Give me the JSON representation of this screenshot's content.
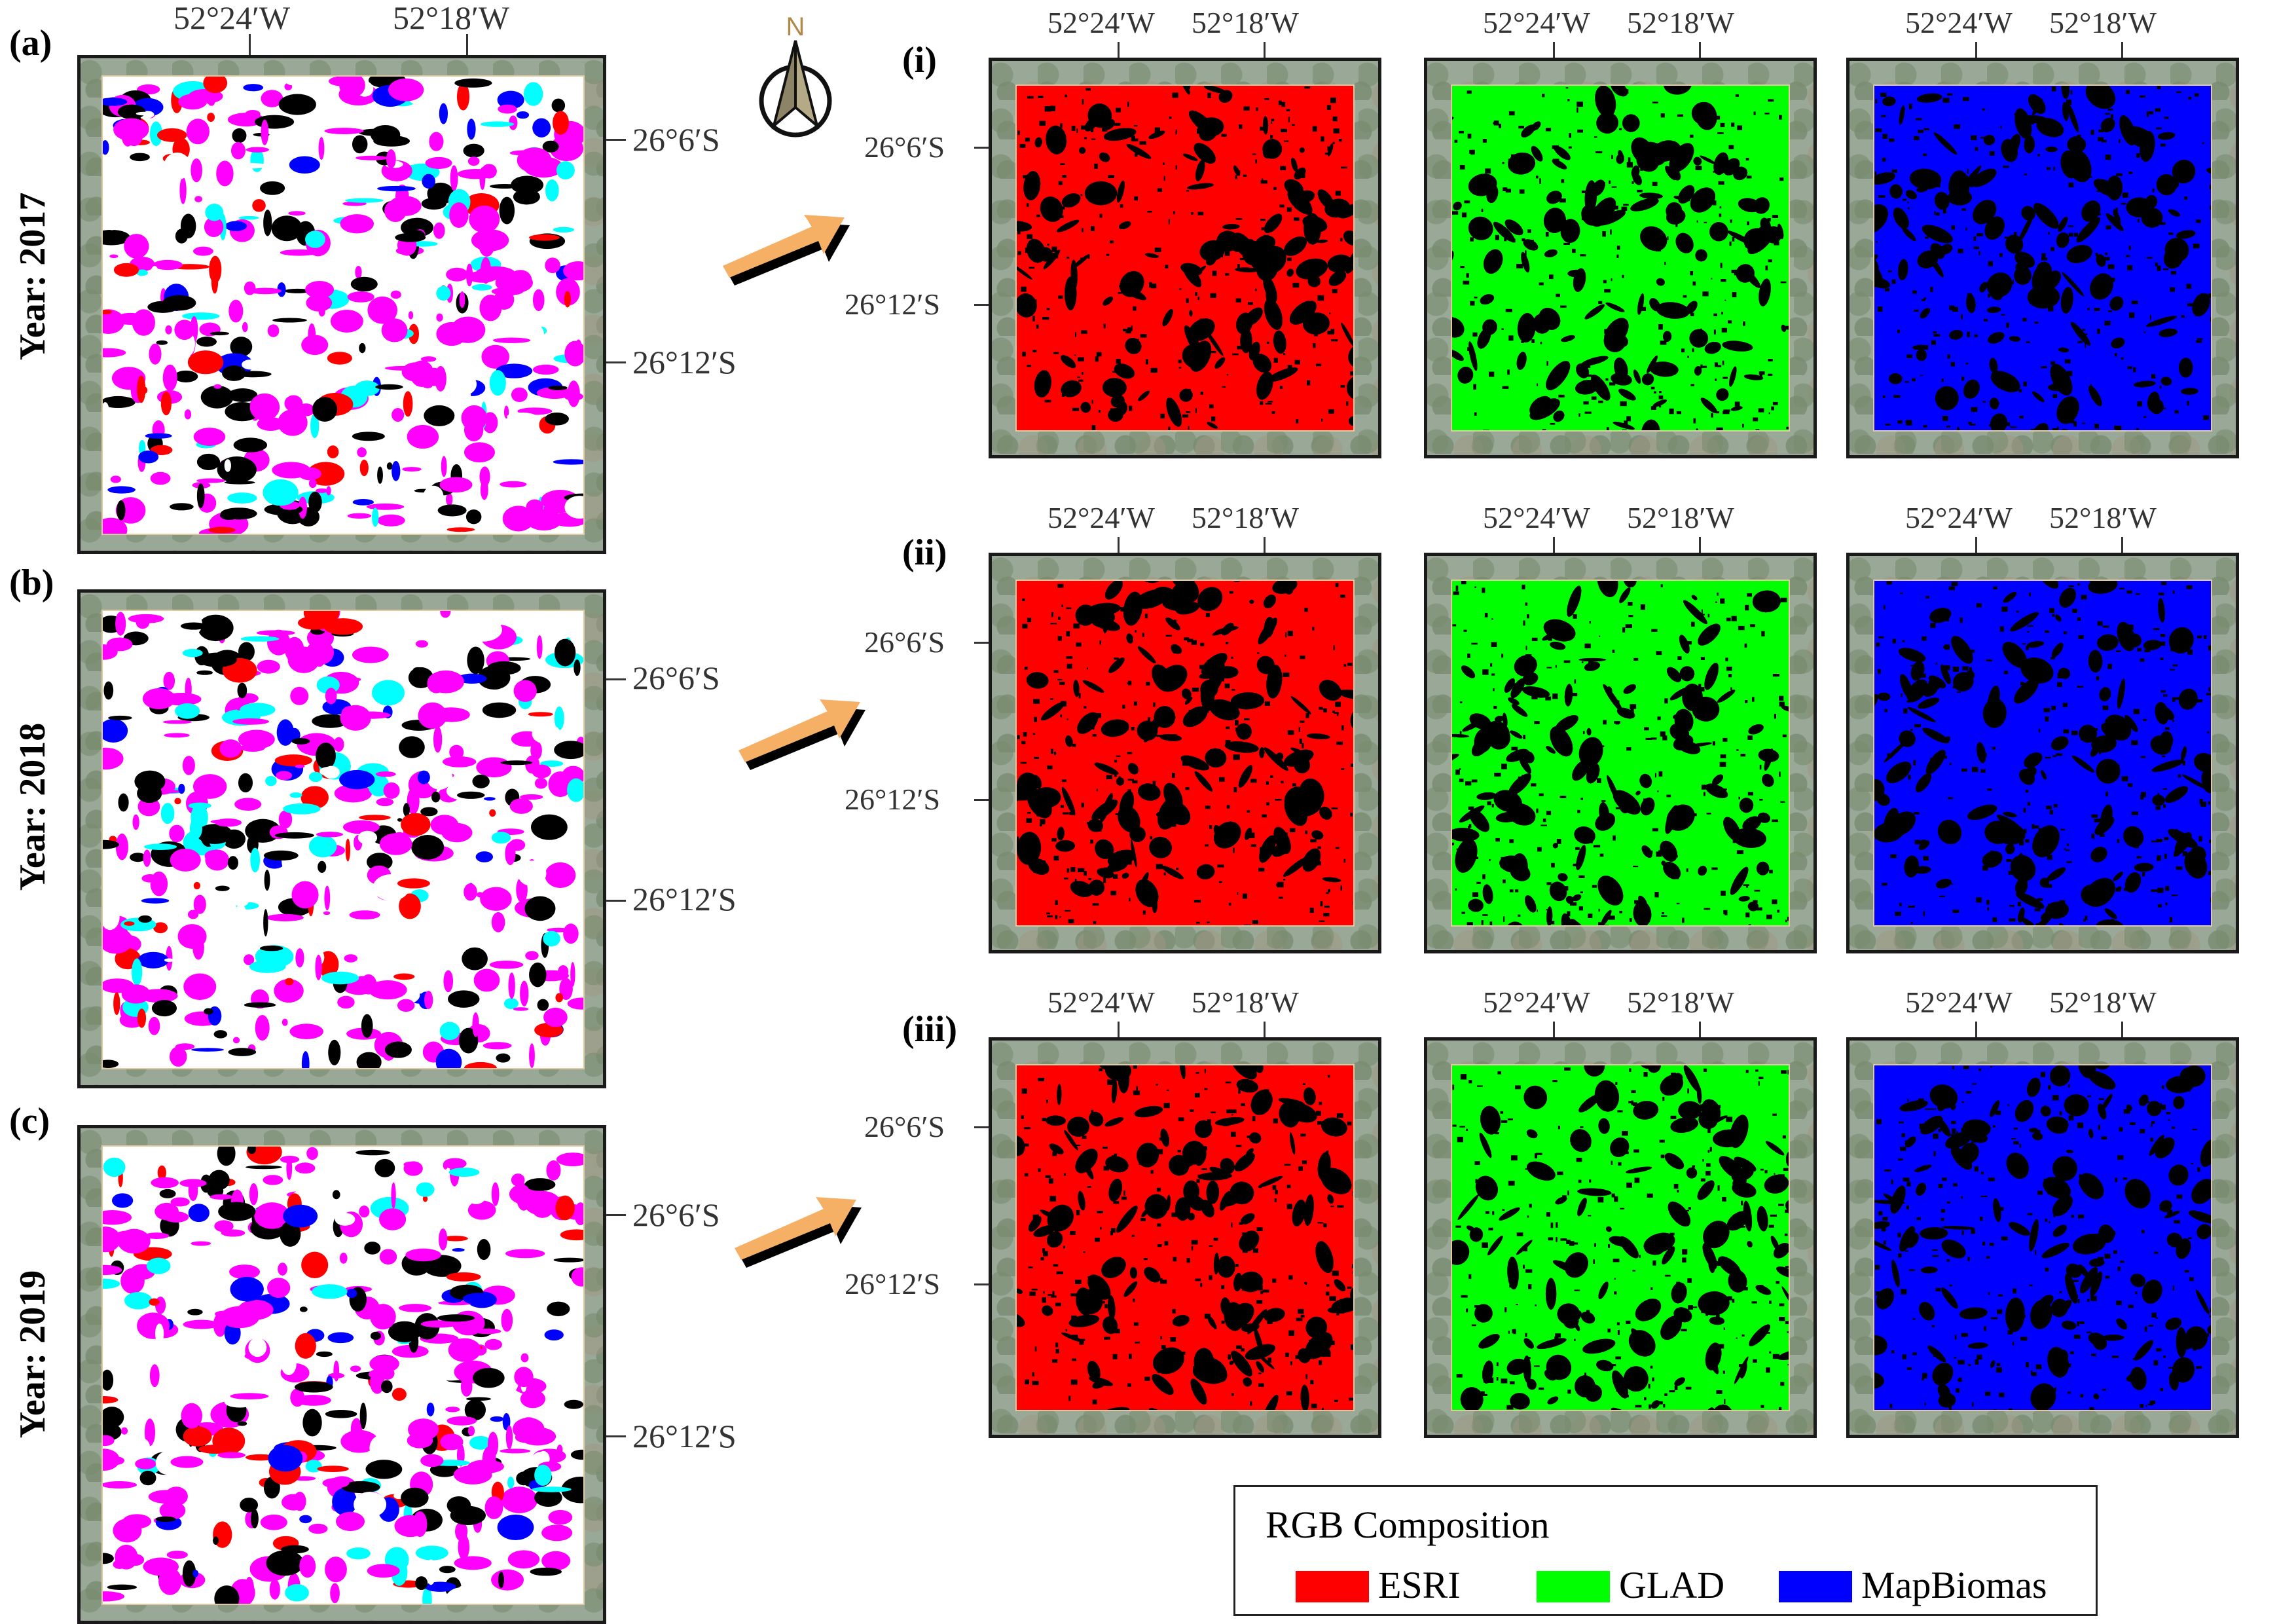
{
  "rows": [
    {
      "letter": "(a)",
      "year": "Year: 2017",
      "roman": "(i)"
    },
    {
      "letter": "(b)",
      "year": "Year: 2018",
      "roman": "(ii)"
    },
    {
      "letter": "(c)",
      "year": "Year: 2019",
      "roman": "(iii)"
    }
  ],
  "coords": {
    "lon1": "52°24′W",
    "lon2": "52°18′W",
    "lat1": "26°6′S",
    "lat2": "26°12′S"
  },
  "north": {
    "label": "N",
    "icon": "north-arrow-icon"
  },
  "arrow_icon": "flow-arrow-icon",
  "legend": {
    "title": "RGB Composition",
    "items": [
      {
        "label": "ESRI",
        "color": "#ff0000"
      },
      {
        "label": "GLAD",
        "color": "#00ff00"
      },
      {
        "label": "MapBiomas",
        "color": "#0000ff"
      }
    ]
  },
  "colors": {
    "composite": [
      "#ffffff",
      "#ff00ff",
      "#ff0000",
      "#000000",
      "#00ffff",
      "#0000ff"
    ],
    "esri": "#ff0000",
    "glad": "#00ff00",
    "mapbiomas": "#0000ff"
  }
}
